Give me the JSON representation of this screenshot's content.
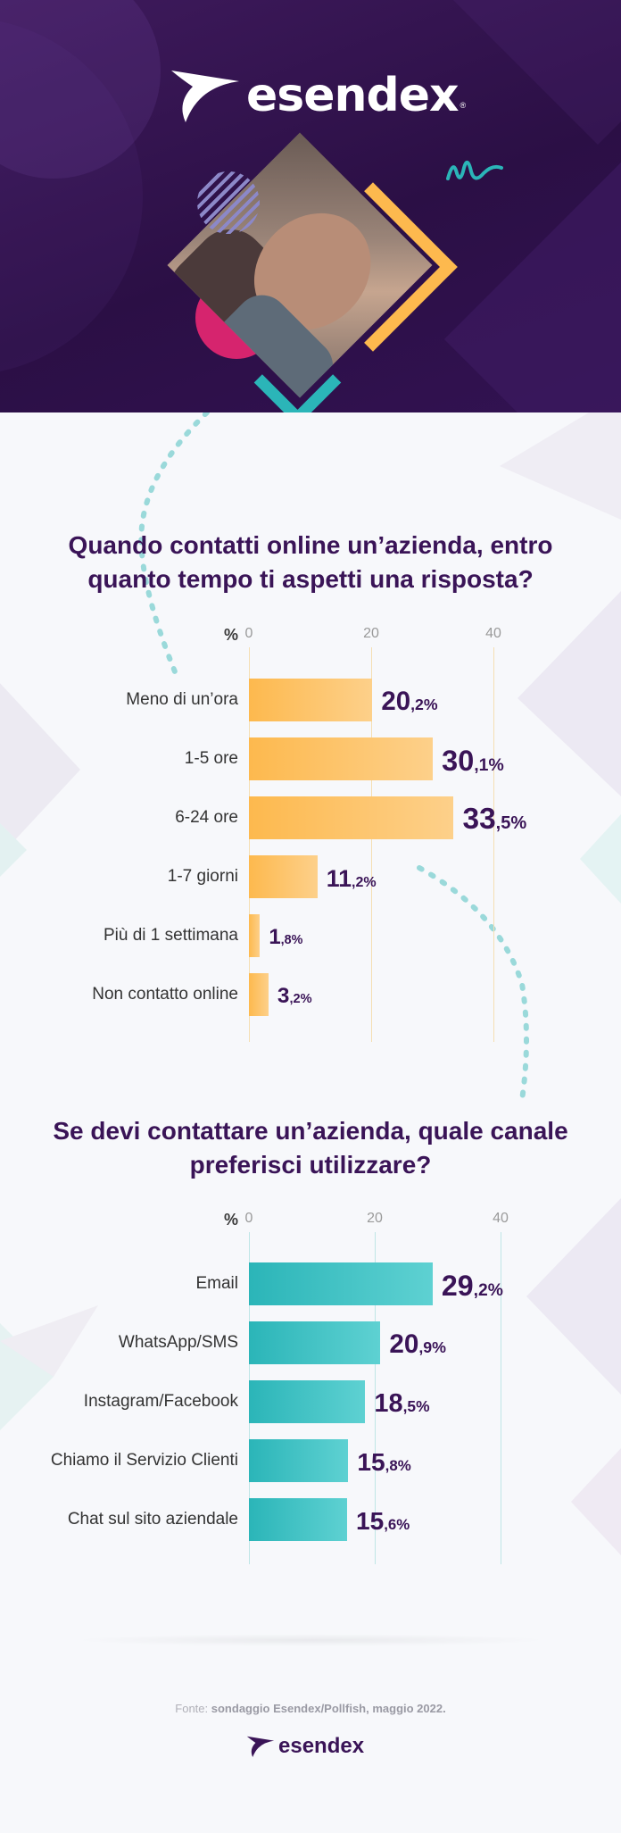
{
  "brand": {
    "name": "esendex",
    "registered": "®",
    "colors": {
      "purple": "#3a1457",
      "orange": "#fdb94e",
      "teal": "#2bb5b8",
      "magenta": "#d6246e"
    }
  },
  "questions": {
    "q1": "Quando contatti online un’azienda, entro quanto tempo ti aspetti una risposta?",
    "q2": "Se devi contattare un’azienda, quale canale preferisci utilizzare?"
  },
  "source": {
    "prefix": "Fonte:",
    "text": "sondaggio Esendex/Pollfish, maggio 2022."
  },
  "chart_data": [
    {
      "type": "bar",
      "orientation": "horizontal",
      "title": "Quando contatti online un’azienda, entro quanto tempo ti aspetti una risposta?",
      "axis_unit": "%",
      "ticks": [
        "0",
        "20",
        "40"
      ],
      "xlim": [
        0,
        40
      ],
      "categories": [
        "Meno di un’ora",
        "1-5 ore",
        "6-24 ore",
        "1-7 giorni",
        "Più di 1 settimana",
        "Non contatto online"
      ],
      "values": [
        20.2,
        30.1,
        33.5,
        11.2,
        1.8,
        3.2
      ],
      "labels": [
        {
          "int": "20",
          "dec": ",2%"
        },
        {
          "int": "30",
          "dec": ",1%"
        },
        {
          "int": "33",
          "dec": ",5%"
        },
        {
          "int": "11",
          "dec": ",2%"
        },
        {
          "int": "1",
          "dec": ",8%"
        },
        {
          "int": "3",
          "dec": ",2%"
        }
      ],
      "color": "#fdb94e"
    },
    {
      "type": "bar",
      "orientation": "horizontal",
      "title": "Se devi contattare un’azienda, quale canale preferisci utilizzare?",
      "axis_unit": "%",
      "ticks": [
        "0",
        "20",
        "40"
      ],
      "xlim": [
        0,
        40
      ],
      "categories": [
        "Email",
        "WhatsApp/SMS",
        "Instagram/Facebook",
        "Chiamo il Servizio Clienti",
        "Chat sul sito aziendale"
      ],
      "values": [
        29.2,
        20.9,
        18.5,
        15.8,
        15.6
      ],
      "labels": [
        {
          "int": "29",
          "dec": ",2%"
        },
        {
          "int": "20",
          "dec": ",9%"
        },
        {
          "int": "18",
          "dec": ",5%"
        },
        {
          "int": "15",
          "dec": ",8%"
        },
        {
          "int": "15",
          "dec": ",6%"
        }
      ],
      "color": "#2bb5b8"
    }
  ]
}
